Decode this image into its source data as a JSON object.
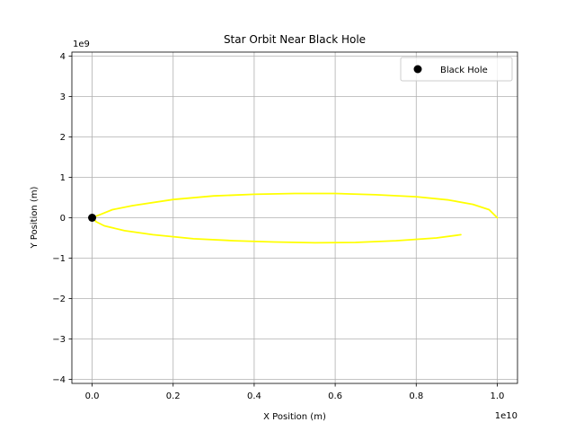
{
  "chart_data": {
    "type": "line",
    "title": "Star Orbit Near Black Hole",
    "xlabel": "X Position (m)",
    "ylabel": "Y Position (m)",
    "x_exponent_label": "1e10",
    "y_exponent_label": "1e9",
    "xlim": [
      -500000000.0,
      10500000000.0
    ],
    "ylim": [
      -4100000000.0,
      4100000000.0
    ],
    "x_ticks": [
      0,
      2000000000.0,
      4000000000.0,
      6000000000.0,
      8000000000.0,
      10000000000.0
    ],
    "x_tick_labels": [
      "0.0",
      "0.2",
      "0.4",
      "0.6",
      "0.8",
      "1.0"
    ],
    "y_ticks": [
      -4000000000.0,
      -3000000000.0,
      -2000000000.0,
      -1000000000.0,
      0,
      1000000000.0,
      2000000000.0,
      3000000000.0,
      4000000000.0
    ],
    "y_tick_labels": [
      "−4",
      "−3",
      "−2",
      "−1",
      "0",
      "1",
      "2",
      "3",
      "4"
    ],
    "grid": true,
    "legend_position": "top-right",
    "series": [
      {
        "type": "line",
        "color": "#ffff00",
        "points": [
          [
            10000000000.0,
            0.0
          ],
          [
            9800000000.0,
            200000000.0
          ],
          [
            9400000000.0,
            330000000.0
          ],
          [
            8800000000.0,
            440000000.0
          ],
          [
            8000000000.0,
            520000000.0
          ],
          [
            7000000000.0,
            570000000.0
          ],
          [
            6000000000.0,
            600000000.0
          ],
          [
            5000000000.0,
            600000000.0
          ],
          [
            4000000000.0,
            580000000.0
          ],
          [
            3000000000.0,
            540000000.0
          ],
          [
            2000000000.0,
            450000000.0
          ],
          [
            1000000000.0,
            300000000.0
          ],
          [
            500000000.0,
            200000000.0
          ],
          [
            200000000.0,
            80000000.0
          ],
          [
            50000000.0,
            20000000.0
          ],
          [
            30000000.0,
            -20000000.0
          ],
          [
            100000000.0,
            -100000000.0
          ],
          [
            300000000.0,
            -200000000.0
          ],
          [
            800000000.0,
            -320000000.0
          ],
          [
            1500000000.0,
            -420000000.0
          ],
          [
            2500000000.0,
            -520000000.0
          ],
          [
            3500000000.0,
            -570000000.0
          ],
          [
            4500000000.0,
            -600000000.0
          ],
          [
            5500000000.0,
            -620000000.0
          ],
          [
            6500000000.0,
            -610000000.0
          ],
          [
            7500000000.0,
            -570000000.0
          ],
          [
            8500000000.0,
            -500000000.0
          ],
          [
            9100000000.0,
            -420000000.0
          ]
        ]
      },
      {
        "type": "scatter",
        "name": "Black Hole",
        "color": "#000000",
        "points": [
          [
            0,
            0
          ]
        ]
      }
    ]
  }
}
